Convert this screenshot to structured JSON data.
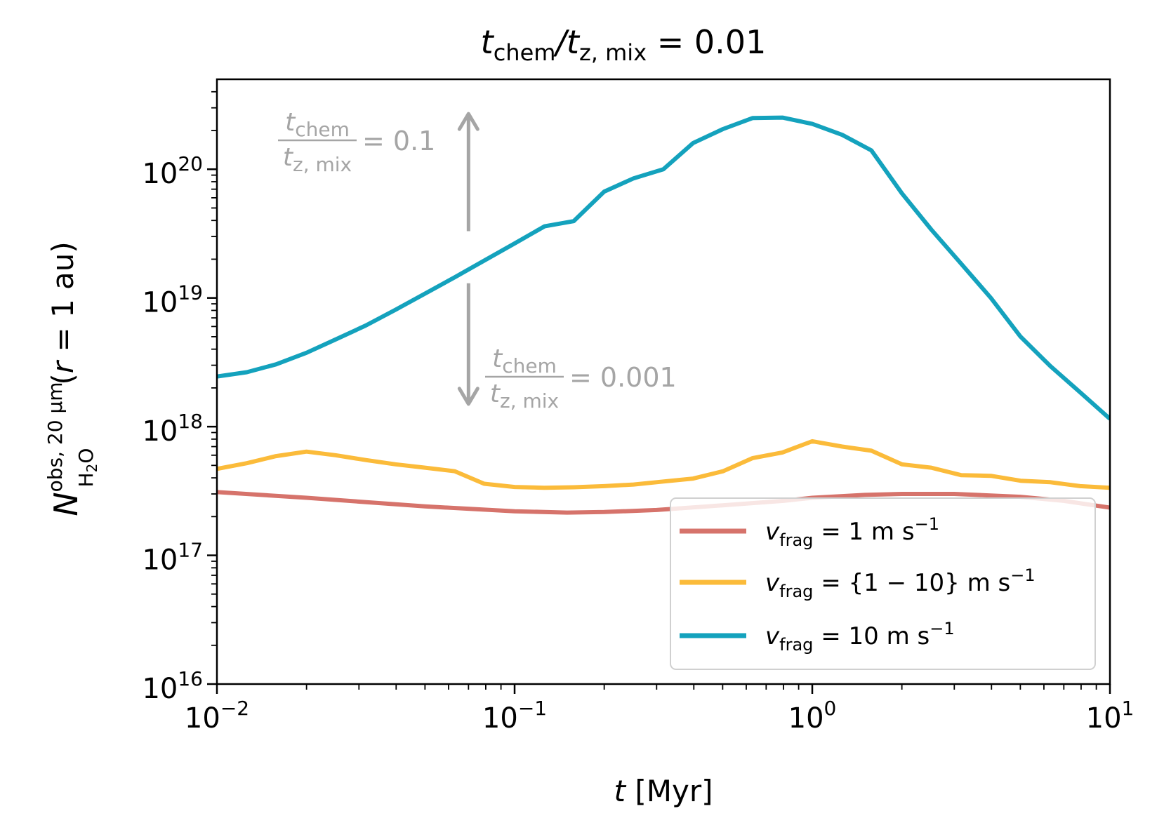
{
  "chart_data": {
    "type": "line",
    "title": {
      "main": "t",
      "sub1": "chem",
      "slash": "/t",
      "sub2": "z, mix",
      "rest": " = 0.01"
    },
    "xlabel": {
      "italic": "t",
      "rest": " [Myr]"
    },
    "ylabel": {
      "symbol": "N",
      "sup": "obs, 20 μm",
      "sub_main": "H",
      "sub_sub": "2",
      "sub_end": "O",
      "tail_open": "(",
      "tail_var": "r",
      "tail_rest": " = 1 au)"
    },
    "xscale": "log",
    "yscale": "log",
    "xlim": [
      0.01,
      10
    ],
    "ylim": [
      1e+16,
      5e+20
    ],
    "xticks": [
      {
        "value": 0.01,
        "base": "10",
        "exp": "−2"
      },
      {
        "value": 0.1,
        "base": "10",
        "exp": "−1"
      },
      {
        "value": 1,
        "base": "10",
        "exp": "0"
      },
      {
        "value": 10,
        "base": "10",
        "exp": "1"
      }
    ],
    "yticks": [
      {
        "value": 1e+16,
        "base": "10",
        "exp": "16"
      },
      {
        "value": 1e+17,
        "base": "10",
        "exp": "17"
      },
      {
        "value": 1e+18,
        "base": "10",
        "exp": "18"
      },
      {
        "value": 1e+19,
        "base": "10",
        "exp": "19"
      },
      {
        "value": 1e+20,
        "base": "10",
        "exp": "20"
      }
    ],
    "series": [
      {
        "name": "v_frag = 1 m s^-1",
        "color": "#d6736b",
        "legend": {
          "v": "v",
          "sub": "frag",
          "text": " = 1 m s",
          "sup": "−1"
        },
        "x": [
          0.01,
          0.02,
          0.05,
          0.1,
          0.15,
          0.2,
          0.3,
          0.5,
          0.8,
          1.0,
          1.5,
          2.0,
          3.0,
          5.0,
          7.0,
          10.0
        ],
        "y": [
          3.1e+17,
          2.8e+17,
          2.4e+17,
          2.2e+17,
          2.15e+17,
          2.17e+17,
          2.25e+17,
          2.45e+17,
          2.65e+17,
          2.8e+17,
          2.95e+17,
          3e+17,
          3e+17,
          2.85e+17,
          2.65e+17,
          2.35e+17
        ]
      },
      {
        "name": "v_frag = {1-10} m s^-1",
        "color": "#fbbb3a",
        "legend": {
          "v": "v",
          "sub": "frag",
          "text": " = {1 − 10} m s",
          "sup": "−1"
        },
        "x": [
          0.01,
          0.0126,
          0.0158,
          0.02,
          0.025,
          0.0316,
          0.0398,
          0.05,
          0.063,
          0.079,
          0.1,
          0.126,
          0.158,
          0.2,
          0.251,
          0.316,
          0.398,
          0.501,
          0.631,
          0.794,
          1.0,
          1.26,
          1.58,
          2.0,
          2.51,
          3.16,
          3.98,
          5.01,
          6.31,
          7.94,
          10.0
        ],
        "y": [
          4.7e+17,
          5.2e+17,
          5.9e+17,
          6.4e+17,
          6e+17,
          5.5e+17,
          5.1e+17,
          4.8e+17,
          4.5e+17,
          3.6e+17,
          3.4e+17,
          3.35e+17,
          3.38e+17,
          3.45e+17,
          3.55e+17,
          3.75e+17,
          3.95e+17,
          4.5e+17,
          5.7e+17,
          6.3e+17,
          7.7e+17,
          7e+17,
          6.5e+17,
          5.1e+17,
          4.8e+17,
          4.2e+17,
          4.15e+17,
          3.8e+17,
          3.7e+17,
          3.45e+17,
          3.35e+17
        ]
      },
      {
        "name": "v_frag = 10 m s^-1",
        "color": "#14a2bd",
        "legend": {
          "v": "v",
          "sub": "frag",
          "text": " = 10 m s",
          "sup": "−1"
        },
        "x": [
          0.01,
          0.0126,
          0.0158,
          0.02,
          0.025,
          0.0316,
          0.0398,
          0.05,
          0.063,
          0.079,
          0.1,
          0.126,
          0.158,
          0.2,
          0.251,
          0.316,
          0.398,
          0.501,
          0.631,
          0.794,
          1.0,
          1.26,
          1.58,
          2.0,
          2.51,
          3.16,
          3.98,
          5.01,
          6.31,
          7.94,
          10.0
        ],
        "y": [
          2.45e+18,
          2.65e+18,
          3.05e+18,
          3.75e+18,
          4.75e+18,
          6.1e+18,
          8.1e+18,
          1.08e+19,
          1.45e+19,
          1.95e+19,
          2.65e+19,
          3.6e+19,
          3.95e+19,
          6.7e+19,
          8.5e+19,
          1e+20,
          1.6e+20,
          2.05e+20,
          2.5e+20,
          2.52e+20,
          2.25e+20,
          1.85e+20,
          1.4e+20,
          6.5e+19,
          3.4e+19,
          1.85e+19,
          1e+19,
          5e+18,
          2.95e+18,
          1.85e+18,
          1.15e+18
        ]
      }
    ],
    "annotations": {
      "up": {
        "num_var": "t",
        "num_sub": "chem",
        "den_var": "t",
        "den_sub": "z, mix",
        "value": " = 0.1",
        "x": 0.07,
        "y_from": 3.3e+19,
        "y_to": 2.7e+20,
        "color": "#a5a5a5"
      },
      "down": {
        "num_var": "t",
        "num_sub": "chem",
        "den_var": "t",
        "den_sub": "z, mix",
        "value": " = 0.001",
        "x": 0.07,
        "y_from": 1.3e+19,
        "y_to": 1.5e+18,
        "color": "#a5a5a5"
      }
    },
    "legend_position": "lower-right"
  }
}
